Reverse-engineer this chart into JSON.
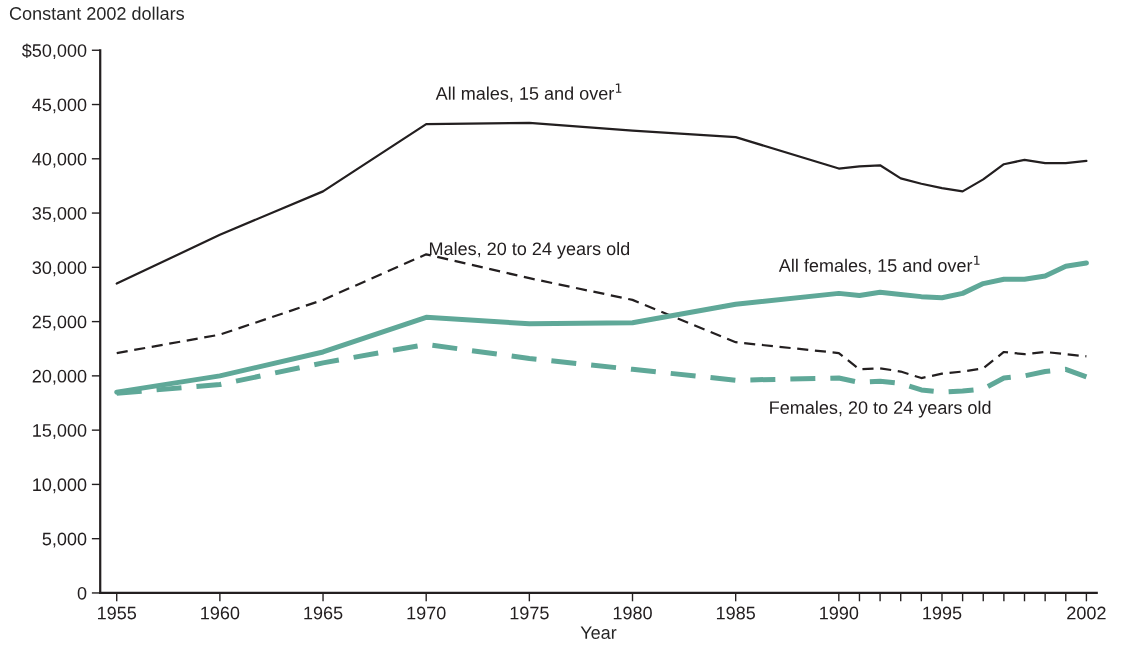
{
  "chart_data": {
    "type": "line",
    "ylabel": "Constant 2002 dollars",
    "xlabel": "Year",
    "x": [
      1955,
      1960,
      1965,
      1970,
      1975,
      1980,
      1985,
      1990,
      1991,
      1992,
      1993,
      1994,
      1995,
      1996,
      1997,
      1998,
      1999,
      2000,
      2001,
      2002
    ],
    "series": [
      {
        "name": "All males, 15 and over$^{1}$",
        "color": "#231f20",
        "line_style": "solid",
        "values": [
          28500,
          33000,
          37000,
          43200,
          43300,
          42600,
          42000,
          39100,
          39300,
          39400,
          38200,
          37700,
          37300,
          37000,
          38100,
          39500,
          39900,
          39600,
          39600,
          39800
        ]
      },
      {
        "name": "Males, 20 to 24 years old",
        "color": "#231f20",
        "line_style": "dashed",
        "values": [
          22100,
          23800,
          27000,
          31200,
          29000,
          27000,
          23100,
          22100,
          20600,
          20700,
          20400,
          19800,
          20200,
          20400,
          20700,
          22200,
          22000,
          22200,
          22000,
          21800
        ]
      },
      {
        "name": "All females, 15 and over$^{1}$",
        "color": "#5fa898",
        "line_style": "solid",
        "values": [
          18500,
          20000,
          22200,
          25400,
          24800,
          24900,
          26600,
          27600,
          27400,
          27700,
          27500,
          27300,
          27200,
          27600,
          28500,
          28900,
          28900,
          29200,
          30100,
          30400
        ]
      },
      {
        "name": "Females, 20 to 24 years old",
        "color": "#5fa898",
        "line_style": "dashed",
        "values": [
          18400,
          19200,
          21200,
          22900,
          21600,
          20600,
          19600,
          19800,
          19400,
          19500,
          19300,
          18700,
          18500,
          18600,
          18800,
          19800,
          20000,
          20400,
          20600,
          19900
        ]
      }
    ],
    "xlim": [
      1954.2,
      2002.5
    ],
    "xticks": [
      1955,
      1960,
      1965,
      1970,
      1975,
      1980,
      1985,
      1990,
      {
        "value": 1991,
        "label": null
      },
      {
        "value": 1992,
        "label": null
      },
      {
        "value": 1993,
        "label": null
      },
      {
        "value": 1994,
        "label": null
      },
      1995,
      {
        "value": 1996,
        "label": null
      },
      {
        "value": 1997,
        "label": null
      },
      {
        "value": 1998,
        "label": null
      },
      {
        "value": 1999,
        "label": null
      },
      {
        "value": 2000,
        "label": null
      },
      {
        "value": 2001,
        "label": null
      },
      2002
    ],
    "ylim": [
      0,
      50000
    ],
    "yticks": [
      {
        "value": 0,
        "label": "0"
      },
      {
        "value": 5000,
        "label": "5,000"
      },
      {
        "value": 10000,
        "label": "10,000"
      },
      {
        "value": 15000,
        "label": "15,000"
      },
      {
        "value": 20000,
        "label": "20,000"
      },
      {
        "value": 25000,
        "label": "25,000"
      },
      {
        "value": 30000,
        "label": "30,000"
      },
      {
        "value": 35000,
        "label": "35,000"
      },
      {
        "value": 40000,
        "label": "40,000"
      },
      {
        "value": 45000,
        "label": "45,000"
      },
      {
        "value": 50000,
        "label": "$50,000"
      }
    ],
    "grid": false,
    "legend": false,
    "marker": "none"
  }
}
